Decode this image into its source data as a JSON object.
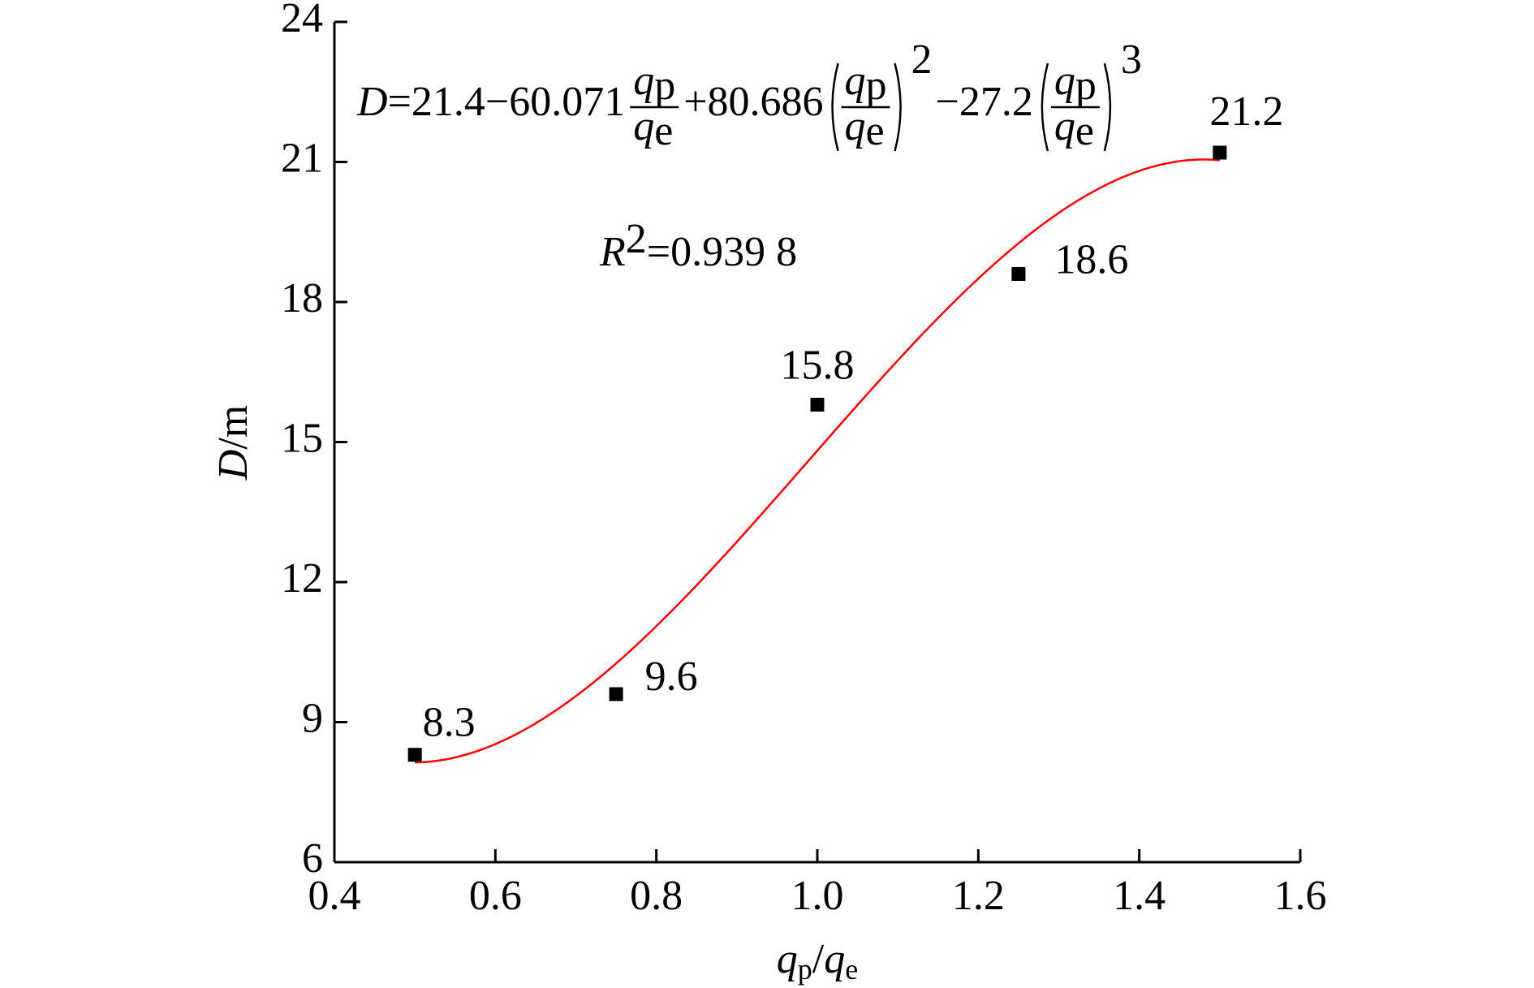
{
  "chart_data": {
    "type": "scatter",
    "x": [
      0.5,
      0.75,
      1.0,
      1.25,
      1.5
    ],
    "series": [
      {
        "values": [
          8.3,
          9.6,
          15.8,
          18.6,
          21.2
        ],
        "color": "#000000"
      }
    ],
    "xlim": [
      0.4,
      1.6
    ],
    "xticks": [
      0.4,
      0.6,
      0.8,
      {
        "value": 1.0,
        "label": "1.0"
      },
      1.2,
      1.4,
      1.6
    ],
    "ylim": [
      6,
      24
    ],
    "yticks": [
      6,
      9,
      12,
      15,
      18,
      21,
      24
    ],
    "xlabel": {
      "var1": "q",
      "sub1": "p",
      "slash": "/",
      "var2": "q",
      "sub2": "e"
    },
    "ylabel": {
      "var": "D",
      "unit": "/m"
    },
    "fit": {
      "kind": "cubic",
      "color": "#ff0000",
      "lhs": "D",
      "equals": "=",
      "coefficients": [
        21.4,
        -60.071,
        80.686,
        -27.2
      ],
      "coefficient_labels": [
        "21.4",
        "−60.071",
        "+80.686",
        "−27.2"
      ],
      "numerator": "q",
      "numerator_sub": "p",
      "denominator": "q",
      "denominator_sub": "e",
      "exponents": [
        2,
        3
      ]
    },
    "r_squared": {
      "symbol": "R",
      "exponent": 2,
      "value": 0.9398,
      "value_label": "=0.939 8"
    }
  }
}
